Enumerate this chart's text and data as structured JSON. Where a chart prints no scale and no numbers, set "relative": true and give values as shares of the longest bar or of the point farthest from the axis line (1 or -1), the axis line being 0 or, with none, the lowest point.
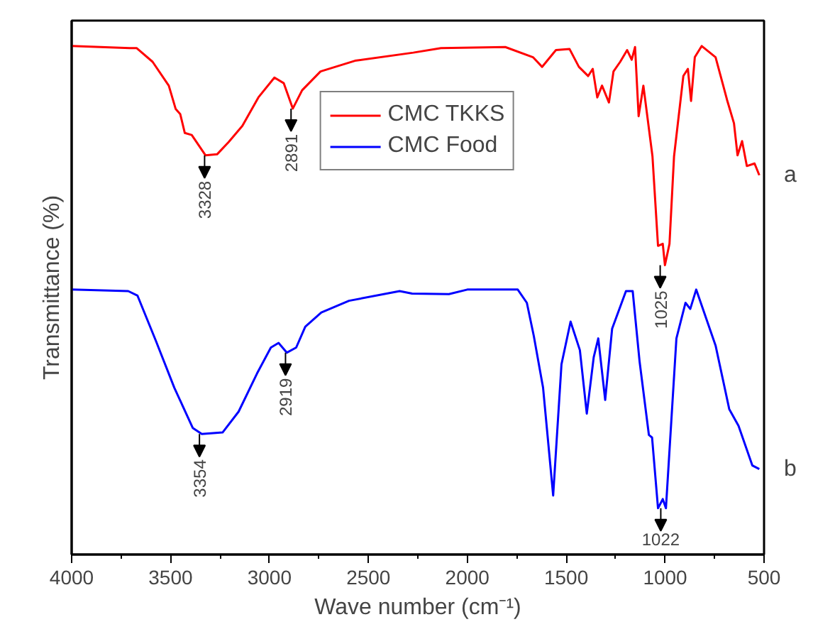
{
  "chart_data": {
    "type": "line",
    "relative": true,
    "xlabel": "Wave number (cm⁻¹)",
    "ylabel": "Transmittance (%)",
    "legend": "top",
    "grid": false,
    "xlim": [
      4000,
      500
    ],
    "xticks": [
      4000,
      {
        "value": 3750,
        "label": null
      },
      3500,
      {
        "value": 3250,
        "label": null
      },
      3000,
      {
        "value": 2750,
        "label": null
      },
      2500,
      {
        "value": 2250,
        "label": null
      },
      2000,
      {
        "value": 1750,
        "label": null
      },
      1500,
      {
        "value": 1250,
        "label": null
      },
      1000,
      {
        "value": 750,
        "label": null
      },
      500
    ],
    "series": [
      {
        "name": "CMC TKKS",
        "color": "#ff0000",
        "x": [
          4000,
          3707,
          3672,
          3591,
          3509,
          3474,
          3451,
          3428,
          3393,
          3323,
          3265,
          3207,
          3137,
          3056,
          2975,
          2928,
          2882,
          2835,
          2742,
          2568,
          2273,
          2133,
          1808,
          1668,
          1622,
          1552,
          1483,
          1436,
          1389,
          1366,
          1343,
          1319,
          1284,
          1261,
          1227,
          1192,
          1169,
          1152,
          1134,
          1110,
          1064,
          1036,
          1012,
          1001,
          978,
          955,
          908,
          885,
          869,
          850,
          815,
          745,
          687,
          652,
          634,
          611,
          587,
          548,
          524
        ],
        "values": [
          1.0,
          0.996,
          0.996,
          0.969,
          0.922,
          0.876,
          0.866,
          0.829,
          0.825,
          0.785,
          0.787,
          0.811,
          0.843,
          0.899,
          0.938,
          0.927,
          0.877,
          0.913,
          0.95,
          0.971,
          0.987,
          0.996,
          0.998,
          0.978,
          0.959,
          0.992,
          0.994,
          0.959,
          0.941,
          0.955,
          0.899,
          0.922,
          0.889,
          0.95,
          0.969,
          0.992,
          0.973,
          0.998,
          0.862,
          0.922,
          0.783,
          0.607,
          0.611,
          0.569,
          0.611,
          0.783,
          0.941,
          0.955,
          0.892,
          0.978,
          1.0,
          0.978,
          0.894,
          0.848,
          0.785,
          0.813,
          0.764,
          0.769,
          0.746
        ]
      },
      {
        "name": "CMC Food",
        "color": "#0000ff",
        "x": [
          4000,
          3714,
          3667,
          3575,
          3481,
          3388,
          3342,
          3237,
          3156,
          3063,
          2993,
          2954,
          2912,
          2865,
          2819,
          2738,
          2598,
          2342,
          2279,
          2093,
          2000,
          1745,
          1699,
          1664,
          1617,
          1566,
          1524,
          1478,
          1431,
          1396,
          1361,
          1338,
          1303,
          1268,
          1198,
          1164,
          1129,
          1082,
          1066,
          1036,
          1012,
          996,
          943,
          897,
          873,
          843,
          745,
          676,
          629,
          559,
          524
        ],
        "values": [
          0.521,
          0.518,
          0.509,
          0.421,
          0.328,
          0.249,
          0.237,
          0.24,
          0.281,
          0.356,
          0.407,
          0.416,
          0.397,
          0.407,
          0.448,
          0.476,
          0.499,
          0.518,
          0.513,
          0.512,
          0.521,
          0.521,
          0.495,
          0.43,
          0.328,
          0.116,
          0.374,
          0.458,
          0.402,
          0.277,
          0.388,
          0.425,
          0.304,
          0.444,
          0.518,
          0.518,
          0.379,
          0.235,
          0.23,
          0.091,
          0.109,
          0.091,
          0.425,
          0.495,
          0.483,
          0.521,
          0.411,
          0.286,
          0.253,
          0.175,
          0.168
        ]
      }
    ],
    "annotations": [
      {
        "text": "3328",
        "x": 3328,
        "y": 0.785
      },
      {
        "text": "2891",
        "x": 2891,
        "y": 0.877
      },
      {
        "text": "1025",
        "x": 1025,
        "y": 0.569
      },
      {
        "text": "3354",
        "x": 3354,
        "y": 0.237
      },
      {
        "text": "2919",
        "x": 2919,
        "y": 0.397
      },
      {
        "text": "1022",
        "x": 1022,
        "y": 0.091
      },
      {
        "text": "a",
        "x": 524,
        "y": 0.746
      },
      {
        "text": "b",
        "x": 524,
        "y": 0.168
      }
    ]
  }
}
